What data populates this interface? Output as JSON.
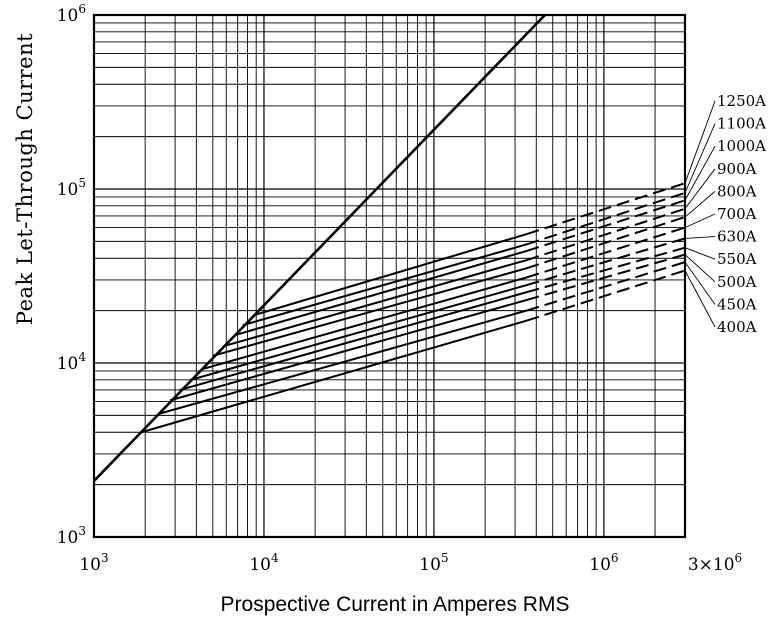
{
  "chart_data": {
    "type": "line",
    "title": "",
    "xlabel": "Prospective Current in Amperes RMS",
    "ylabel": "Peak Let-Through Current",
    "xscale": "log",
    "yscale": "log",
    "xlim": [
      1000,
      3000000
    ],
    "ylim": [
      1000,
      1000000
    ],
    "grid": true,
    "x_ticks": [
      {
        "base": "10",
        "exp": "3"
      },
      {
        "base": "10",
        "exp": "4"
      },
      {
        "base": "10",
        "exp": "5"
      },
      {
        "base": "10",
        "exp": "6"
      },
      {
        "base": "3×10",
        "exp": "6"
      }
    ],
    "y_ticks": [
      {
        "base": "10",
        "exp": "3"
      },
      {
        "base": "10",
        "exp": "4"
      },
      {
        "base": "10",
        "exp": "5"
      },
      {
        "base": "10",
        "exp": "6"
      }
    ],
    "max_peak_line": {
      "x": [
        1000,
        450000
      ],
      "y": [
        2100,
        1000000
      ]
    },
    "series": [
      {
        "name": "1250A",
        "x": [
          9000,
          350000,
          3000000
        ],
        "y": [
          19000,
          55000,
          108000
        ]
      },
      {
        "name": "1100A",
        "x": [
          7500,
          350000,
          3000000
        ],
        "y": [
          16500,
          48000,
          95000
        ]
      },
      {
        "name": "1000A",
        "x": [
          6800,
          350000,
          3000000
        ],
        "y": [
          14500,
          44000,
          86000
        ]
      },
      {
        "name": "900A",
        "x": [
          5800,
          350000,
          3000000
        ],
        "y": [
          12500,
          39000,
          77000
        ]
      },
      {
        "name": "800A",
        "x": [
          5000,
          350000,
          3000000
        ],
        "y": [
          11000,
          35000,
          69000
        ]
      },
      {
        "name": "700A",
        "x": [
          4300,
          350000,
          3000000
        ],
        "y": [
          9200,
          31000,
          60000
        ]
      },
      {
        "name": "630A",
        "x": [
          3700,
          350000,
          3000000
        ],
        "y": [
          8000,
          28000,
          52000
        ]
      },
      {
        "name": "550A",
        "x": [
          3200,
          350000,
          3000000
        ],
        "y": [
          7000,
          25500,
          46000
        ]
      },
      {
        "name": "500A",
        "x": [
          2800,
          350000,
          3000000
        ],
        "y": [
          6100,
          23000,
          42000
        ]
      },
      {
        "name": "450A",
        "x": [
          2400,
          350000,
          3000000
        ],
        "y": [
          5100,
          20000,
          38000
        ]
      },
      {
        "name": "400A",
        "x": [
          1900,
          350000,
          3000000
        ],
        "y": [
          4000,
          17500,
          34000
        ]
      }
    ]
  }
}
